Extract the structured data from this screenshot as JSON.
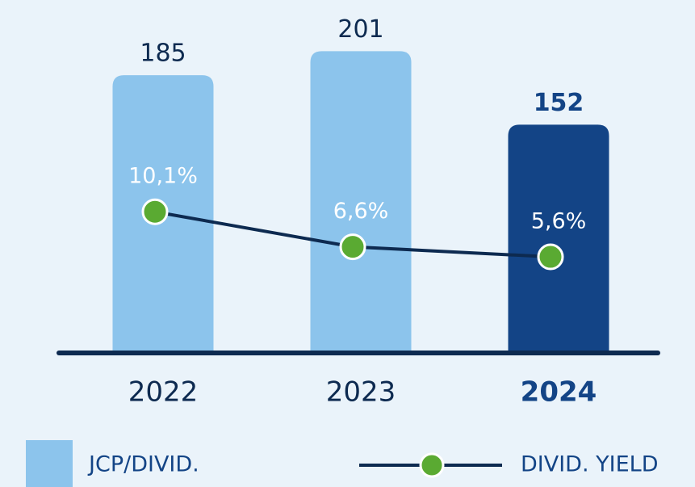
{
  "chart_data": {
    "type": "bar",
    "categories": [
      "2022",
      "2023",
      "2024"
    ],
    "highlight_index": 2,
    "series": [
      {
        "name": "JCP/DIVID.",
        "type": "bar",
        "colors": [
          "#8cc4ec",
          "#8cc4ec",
          "#134486"
        ],
        "color": "#8cc4ec",
        "values": [
          185,
          201,
          152
        ]
      },
      {
        "name": "DIVID. YIELD",
        "type": "line",
        "axis": "y2",
        "color": "#5aaa32",
        "line_color": "#0d2a50",
        "values": [
          10.1,
          6.6,
          5.6
        ],
        "value_labels": [
          "10,1%",
          "6,6%",
          "5,6%"
        ]
      }
    ],
    "ylim": [
      0,
      220
    ],
    "y2lim": [
      -4,
      29
    ]
  }
}
